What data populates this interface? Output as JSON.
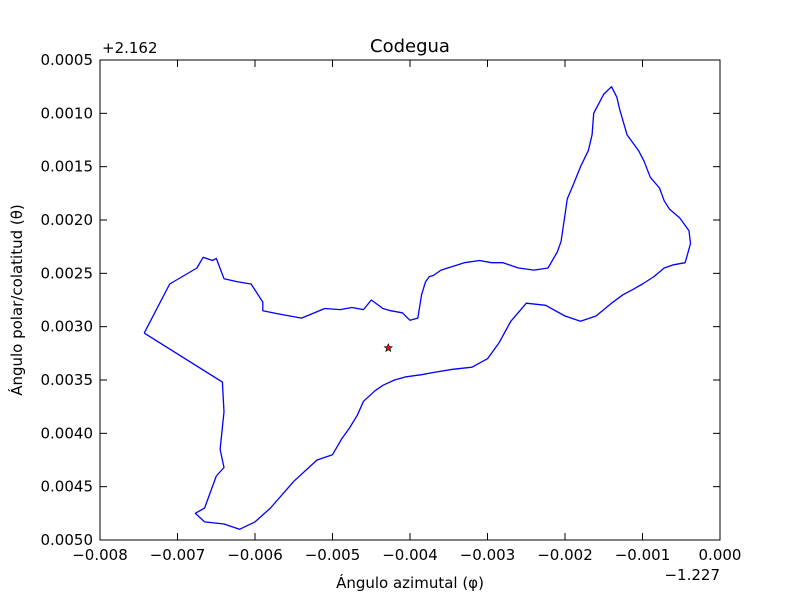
{
  "chart_data": {
    "type": "line",
    "title": "Codegua",
    "xlabel": "Ángulo azimutal (φ)",
    "ylabel": "Ángulo polar/colatitud (θ)",
    "x_offset_label": "−1.227",
    "y_offset_label": "+2.162",
    "xlim": [
      -0.008,
      0.0
    ],
    "ylim": [
      0.0005,
      0.005
    ],
    "y_inverted": true,
    "x_ticks": [
      -0.008,
      -0.007,
      -0.006,
      -0.005,
      -0.004,
      -0.003,
      -0.002,
      -0.001,
      0.0
    ],
    "x_tick_labels": [
      "−0.008",
      "−0.007",
      "−0.006",
      "−0.005",
      "−0.004",
      "−0.003",
      "−0.002",
      "−0.001",
      "0.000"
    ],
    "y_ticks": [
      0.0005,
      0.001,
      0.0015,
      0.002,
      0.0025,
      0.003,
      0.0035,
      0.004,
      0.0045,
      0.005
    ],
    "y_tick_labels": [
      "0.0005",
      "0.0010",
      "0.0015",
      "0.0020",
      "0.0025",
      "0.0030",
      "0.0035",
      "0.0040",
      "0.0045",
      "0.0050"
    ],
    "grid": false,
    "series": [
      {
        "color": "#0000ff",
        "x": [
          -0.00743,
          -0.0071,
          -0.00675,
          -0.00667,
          -0.00655,
          -0.0065,
          -0.0064,
          -0.00622,
          -0.00605,
          -0.0059,
          -0.0059,
          -0.0057,
          -0.0054,
          -0.0051,
          -0.0049,
          -0.00475,
          -0.0046,
          -0.0045,
          -0.00435,
          -0.00425,
          -0.0041,
          -0.004,
          -0.0039,
          -0.00385,
          -0.0038,
          -0.00375,
          -0.0037,
          -0.0036,
          -0.0033,
          -0.0031,
          -0.00295,
          -0.0028,
          -0.0026,
          -0.0024,
          -0.00222,
          -0.0021,
          -0.00205,
          -0.002,
          -0.00197,
          -0.0019,
          -0.0018,
          -0.0017,
          -0.00165,
          -0.00163,
          -0.0015,
          -0.0014,
          -0.00133,
          -0.0013,
          -0.0012,
          -0.00105,
          -0.00098,
          -0.0009,
          -0.00078,
          -0.00072,
          -0.00065,
          -0.00052,
          -0.0004,
          -0.00038,
          -0.00043,
          -0.00045,
          -0.0006,
          -0.00072,
          -0.00085,
          -0.001,
          -0.00112,
          -0.00125,
          -0.0014,
          -0.0016,
          -0.0018,
          -0.002,
          -0.00225,
          -0.0025,
          -0.0027,
          -0.00285,
          -0.003,
          -0.0032,
          -0.00345,
          -0.0037,
          -0.00385,
          -0.00405,
          -0.0042,
          -0.00435,
          -0.00445,
          -0.0046,
          -0.00468,
          -0.00478,
          -0.00488,
          -0.005,
          -0.0052,
          -0.0055,
          -0.0058,
          -0.006,
          -0.0062,
          -0.0064,
          -0.00665,
          -0.00677,
          -0.00665,
          -0.0065,
          -0.0064,
          -0.00645,
          -0.0064,
          -0.00642,
          -0.00743
        ],
        "y": [
          0.00306,
          0.0026,
          0.00245,
          0.00235,
          0.00238,
          0.00236,
          0.00255,
          0.00258,
          0.0026,
          0.00277,
          0.00285,
          0.00288,
          0.00292,
          0.00283,
          0.00284,
          0.00282,
          0.00284,
          0.00275,
          0.00283,
          0.00285,
          0.00287,
          0.00294,
          0.00292,
          0.0027,
          0.00258,
          0.00253,
          0.00252,
          0.00247,
          0.0024,
          0.00238,
          0.0024,
          0.0024,
          0.00245,
          0.00247,
          0.00245,
          0.0023,
          0.0022,
          0.00195,
          0.0018,
          0.00168,
          0.0015,
          0.00135,
          0.0012,
          0.001,
          0.00082,
          0.00075,
          0.00085,
          0.00095,
          0.0012,
          0.00135,
          0.00145,
          0.0016,
          0.0017,
          0.00182,
          0.0019,
          0.00198,
          0.0021,
          0.00222,
          0.00235,
          0.0024,
          0.00242,
          0.00245,
          0.00253,
          0.0026,
          0.00265,
          0.0027,
          0.00278,
          0.0029,
          0.00295,
          0.0029,
          0.0028,
          0.00278,
          0.00295,
          0.00315,
          0.0033,
          0.00338,
          0.0034,
          0.00343,
          0.00345,
          0.00347,
          0.0035,
          0.00355,
          0.0036,
          0.0037,
          0.00383,
          0.00395,
          0.00405,
          0.0042,
          0.00425,
          0.00445,
          0.0047,
          0.00483,
          0.0049,
          0.00485,
          0.00483,
          0.00475,
          0.0047,
          0.0044,
          0.00432,
          0.00415,
          0.0038,
          0.00352,
          0.00306
        ]
      }
    ],
    "points": [
      {
        "x": -0.00428,
        "y": 0.0032,
        "marker": "star",
        "color": "#ff0000"
      }
    ]
  }
}
